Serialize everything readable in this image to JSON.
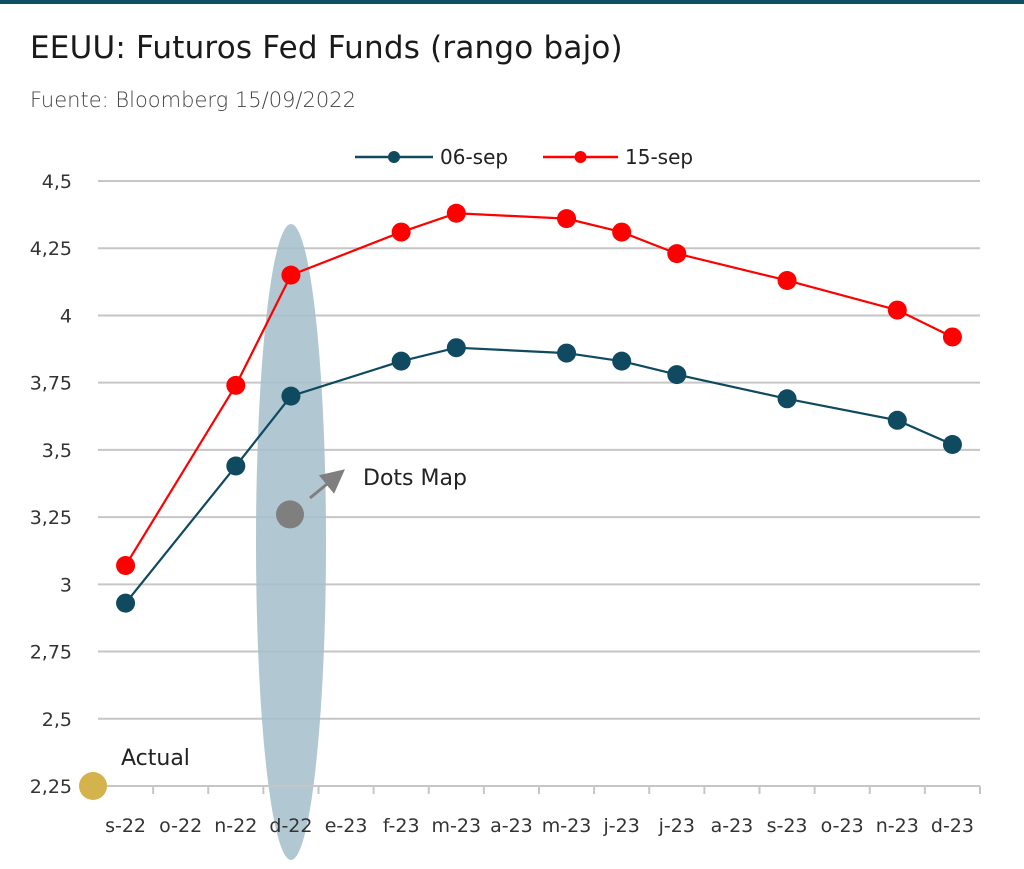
{
  "header": {
    "title": "EEUU: Futuros Fed Funds (rango bajo)",
    "subtitle": "Fuente: Bloomberg 15/09/2022"
  },
  "chart_data": {
    "type": "line",
    "title": "EEUU: Futuros Fed Funds (rango bajo)",
    "subtitle": "Fuente: Bloomberg 15/09/2022",
    "categories": [
      "s-22",
      "o-22",
      "n-22",
      "d-22",
      "e-23",
      "f-23",
      "m-23",
      "a-23",
      "m-23",
      "j-23",
      "j-23",
      "a-23",
      "s-23",
      "o-23",
      "n-23",
      "d-23"
    ],
    "ylim": [
      2.25,
      4.5
    ],
    "yticks": [
      "2,25",
      "2,5",
      "2,75",
      "3",
      "3,25",
      "3,5",
      "3,75",
      "4",
      "4,25",
      "4,5"
    ],
    "ytick_values": [
      2.25,
      2.5,
      2.75,
      3.0,
      3.25,
      3.5,
      3.75,
      4.0,
      4.25,
      4.5
    ],
    "grid": true,
    "legend_position": "top",
    "series": [
      {
        "name": "06-sep",
        "color": "#0f4a60",
        "points": [
          {
            "x": "s-22",
            "y": 2.93
          },
          {
            "x": "n-22",
            "y": 3.44
          },
          {
            "x": "d-22",
            "y": 3.7
          },
          {
            "x": "f-23",
            "y": 3.83
          },
          {
            "x": "m-23",
            "y": 3.88
          },
          {
            "x": "m-23 (may)",
            "y": 3.86
          },
          {
            "x": "j-23 (jun)",
            "y": 3.83
          },
          {
            "x": "j-23 (jul)",
            "y": 3.78
          },
          {
            "x": "s-23",
            "y": 3.69
          },
          {
            "x": "n-23",
            "y": 3.61
          },
          {
            "x": "d-23",
            "y": 3.52
          }
        ]
      },
      {
        "name": "15-sep",
        "color": "#ff0000",
        "points": [
          {
            "x": "s-22",
            "y": 3.07
          },
          {
            "x": "n-22",
            "y": 3.74
          },
          {
            "x": "d-22",
            "y": 4.15
          },
          {
            "x": "f-23",
            "y": 4.31
          },
          {
            "x": "m-23",
            "y": 4.38
          },
          {
            "x": "m-23 (may)",
            "y": 4.36
          },
          {
            "x": "j-23 (jun)",
            "y": 4.31
          },
          {
            "x": "j-23 (jul)",
            "y": 4.23
          },
          {
            "x": "s-23",
            "y": 4.13
          },
          {
            "x": "n-23",
            "y": 4.02
          },
          {
            "x": "d-23",
            "y": 3.92
          }
        ]
      }
    ],
    "annotations": {
      "actual": {
        "label": "Actual",
        "y": 2.25,
        "color": "#d4b24c"
      },
      "dots_map": {
        "label": "Dots Map",
        "y": 3.26,
        "color": "#7f7f7f"
      },
      "highlight_color": "#a6bfcb"
    }
  }
}
